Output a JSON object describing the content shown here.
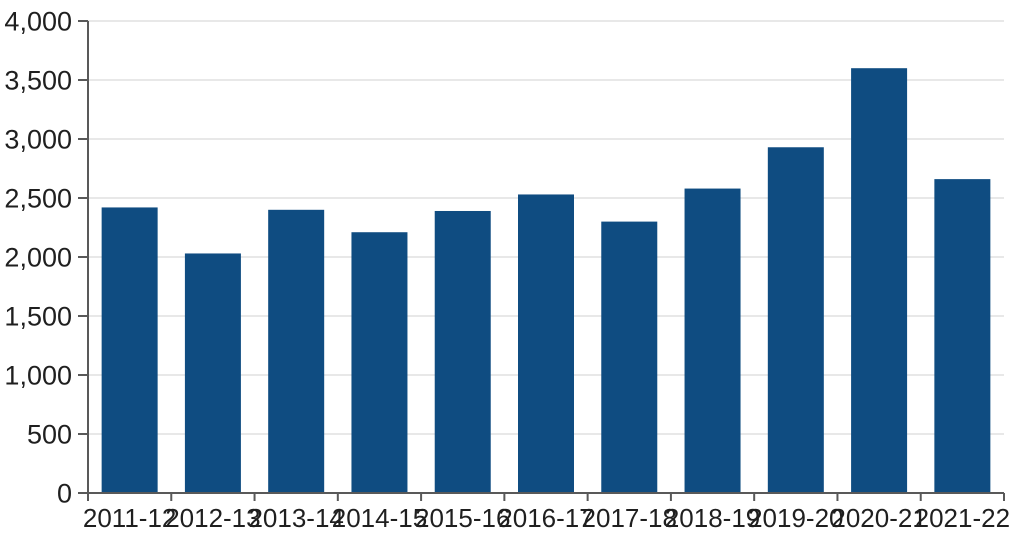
{
  "chart_data": {
    "type": "bar",
    "title": "",
    "xlabel": "",
    "ylabel": "",
    "categories": [
      "2011-12",
      "2012-13",
      "2013-14",
      "2014-15",
      "2015-16",
      "2016-17",
      "2017-18",
      "2018-19",
      "2019-20",
      "2020-21",
      "2021-22"
    ],
    "values": [
      2420,
      2030,
      2400,
      2210,
      2390,
      2530,
      2300,
      2580,
      2930,
      3600,
      2660
    ],
    "ylim": [
      0,
      4000
    ],
    "ytick_step": 500,
    "ytick_labels": [
      "0",
      "500",
      "1,000",
      "1,500",
      "2,000",
      "2,500",
      "3,000",
      "3,500",
      "4,000"
    ],
    "grid": true,
    "legend_position": "none",
    "colors": {
      "bar": "#0f4c81",
      "gridline": "#d9d9d9",
      "axis": "#595959",
      "text": "#1f1f1f",
      "background": "#ffffff"
    }
  }
}
